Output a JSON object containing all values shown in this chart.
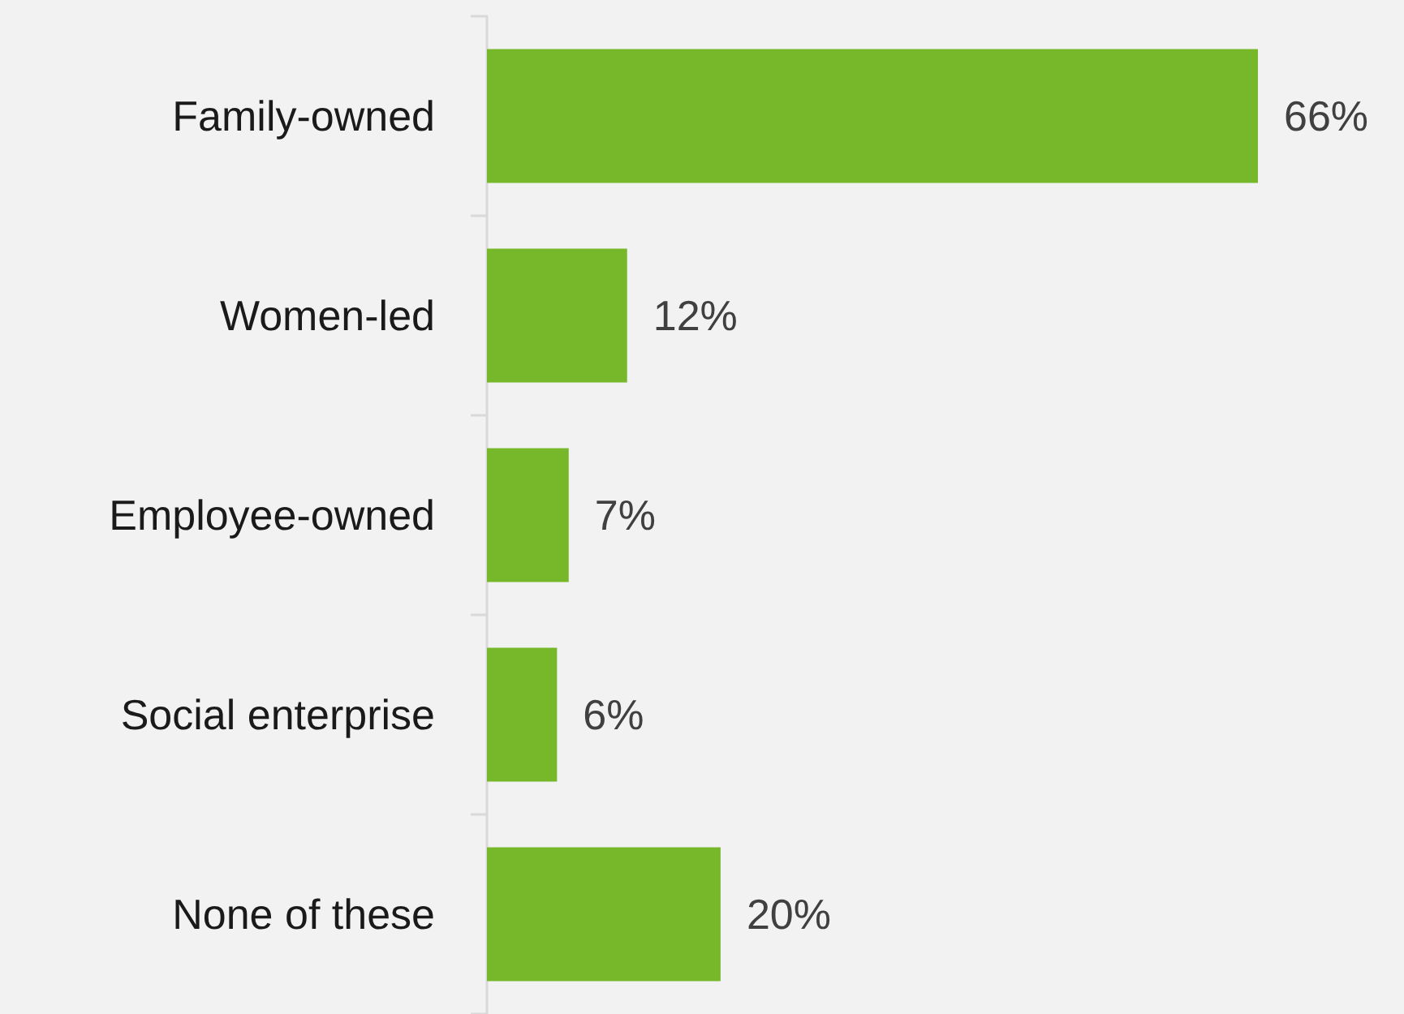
{
  "chart_data": {
    "type": "bar",
    "orientation": "horizontal",
    "categories": [
      "Family-owned",
      "Women-led",
      "Employee-owned",
      "Social enterprise",
      "None of these"
    ],
    "values": [
      66,
      12,
      7,
      6,
      20
    ],
    "value_labels": [
      "66%",
      "12%",
      "7%",
      "6%",
      "20%"
    ],
    "color": "#76b82a"
  }
}
